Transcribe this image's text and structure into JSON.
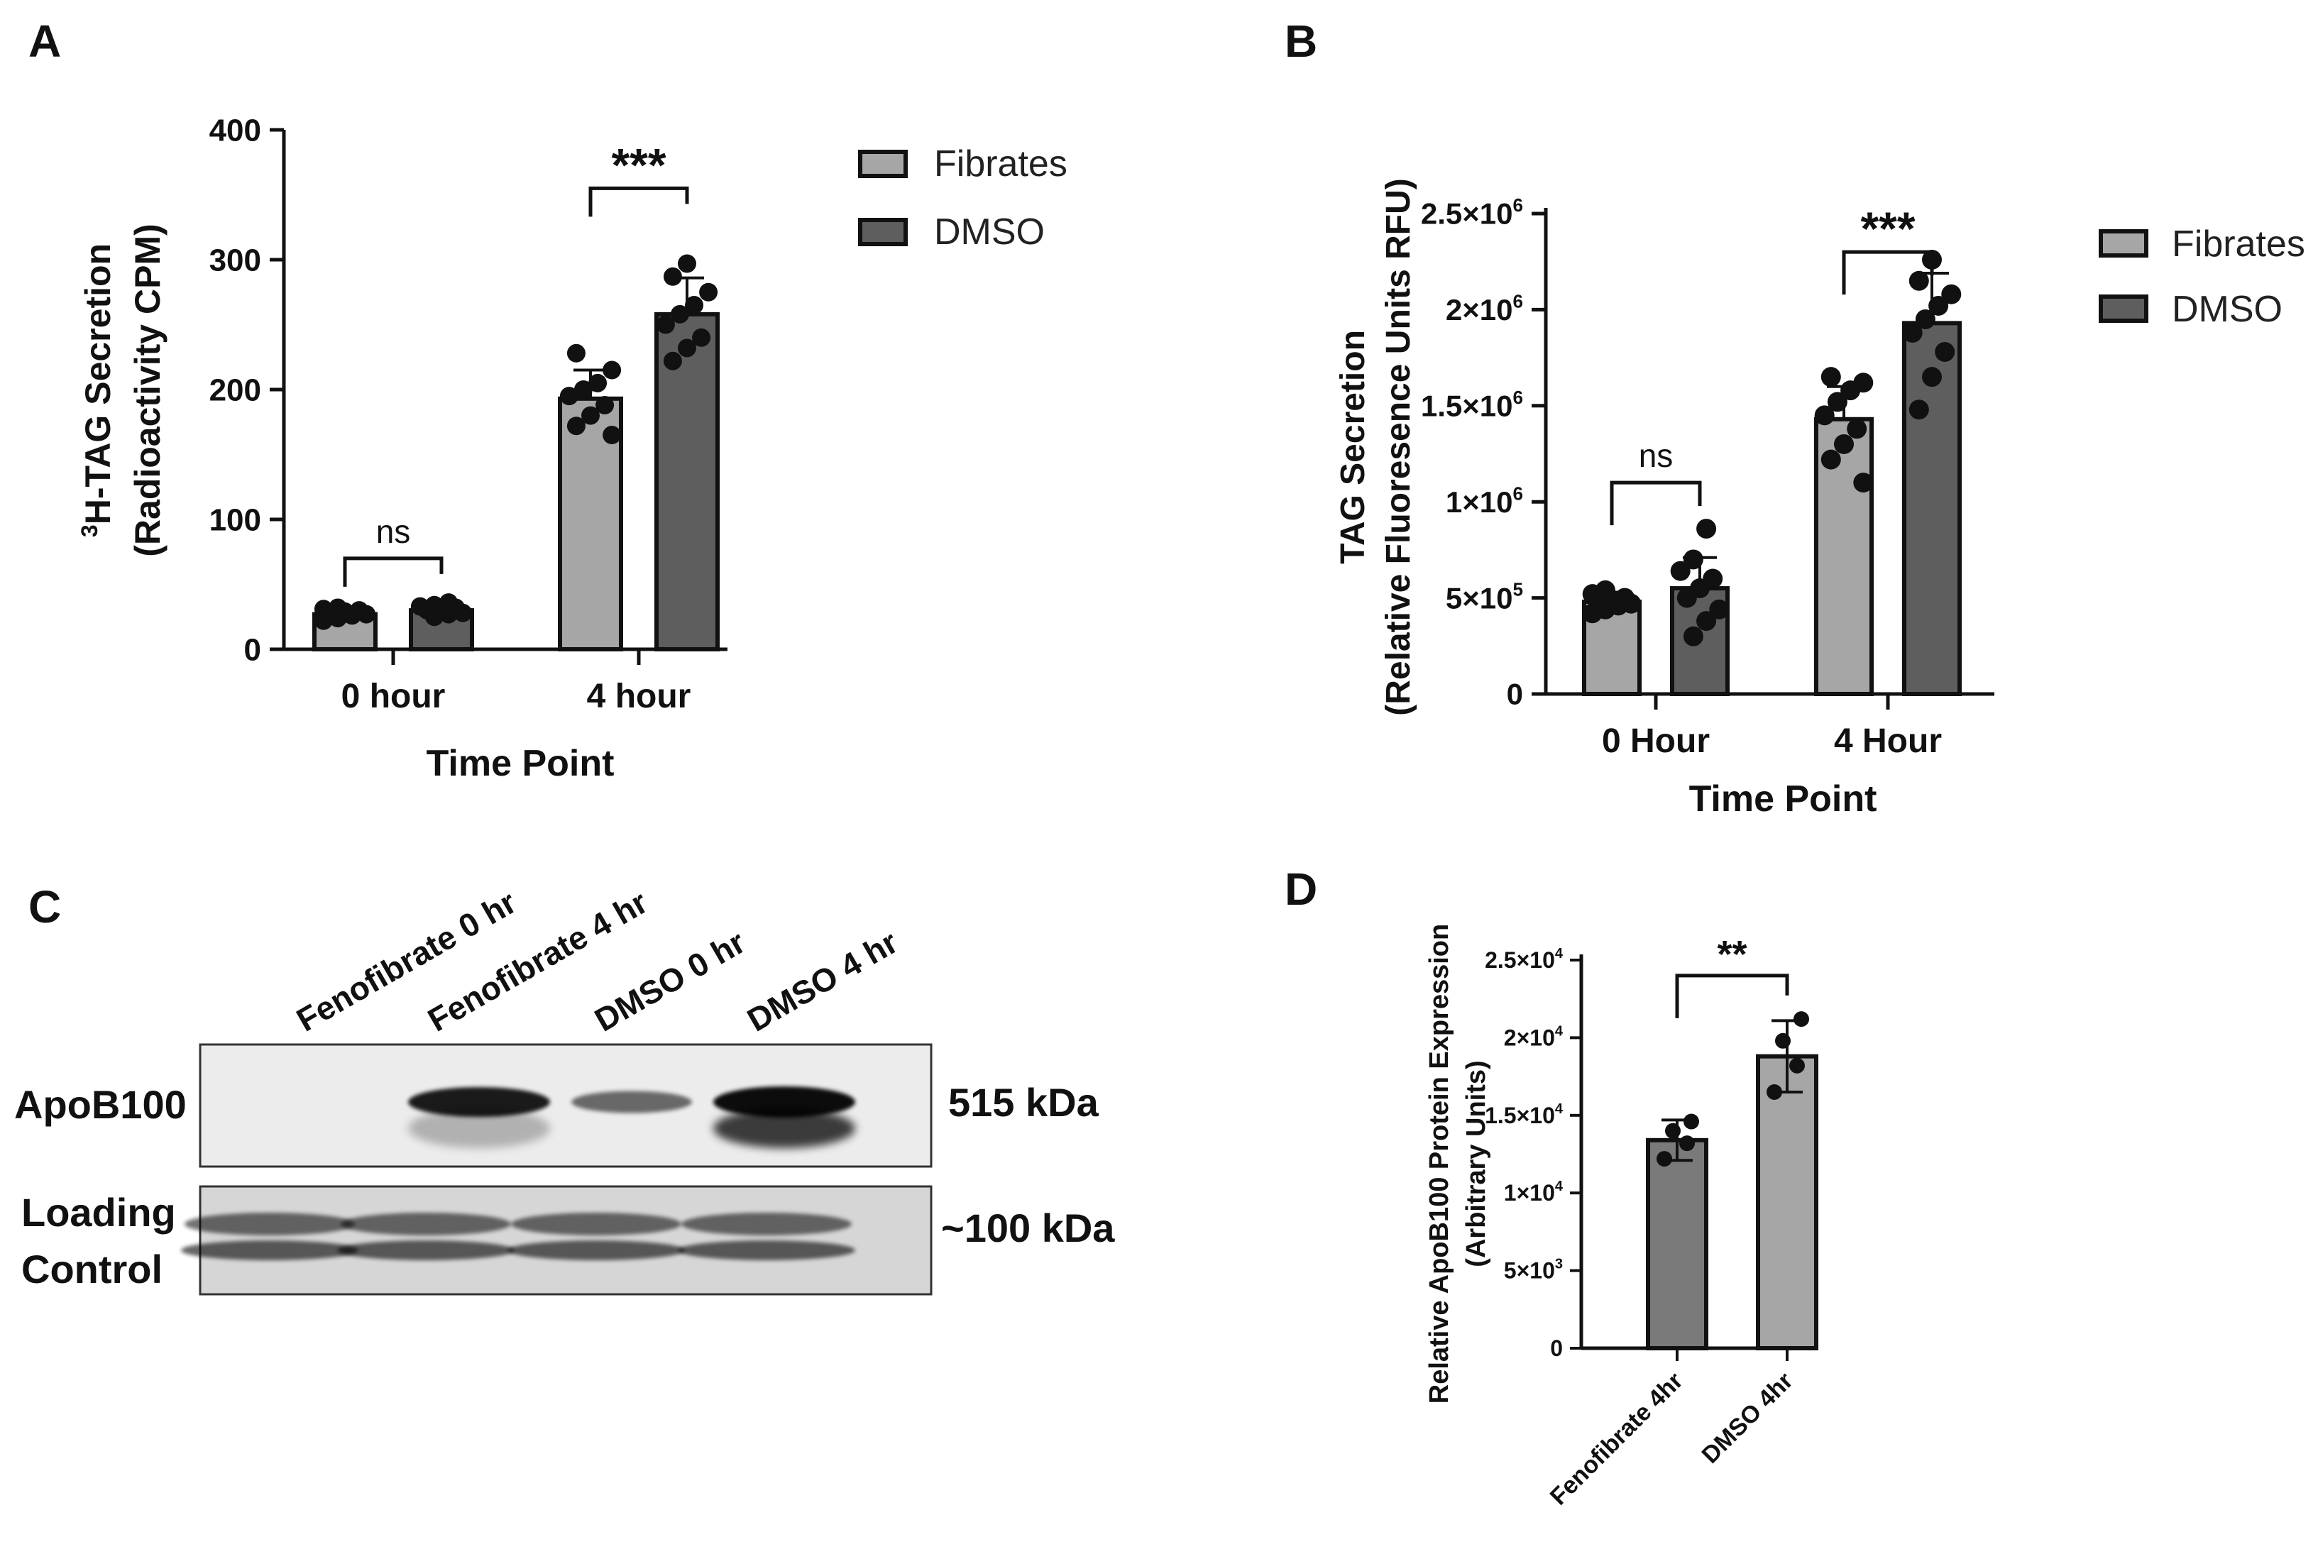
{
  "chart_data": [
    {
      "panel": "A",
      "type": "bar",
      "ylabel_line1_sup": "3",
      "ylabel_line1": "H-TAG Secretion",
      "ylabel_line2": "(Radioactivity CPM)",
      "xlabel": "Time Point",
      "categories": [
        "0 hour",
        "4 hour"
      ],
      "ylim": [
        0,
        400
      ],
      "yticks": [
        "0",
        "100",
        "200",
        "300",
        "400"
      ],
      "ytick_values": [
        0,
        100,
        200,
        300,
        400
      ],
      "series": [
        {
          "name": "Fibrates",
          "color": "#a6a6a6",
          "values": [
            27,
            193
          ],
          "errors": [
            3,
            22
          ],
          "points": [
            [
              22,
              24,
              26,
              27,
              28,
              29,
              30,
              31,
              32
            ],
            [
              165,
              172,
              180,
              188,
              195,
              200,
              205,
              215,
              228
            ]
          ]
        },
        {
          "name": "DMSO",
          "color": "#5e5e5e",
          "values": [
            30,
            258
          ],
          "errors": [
            4,
            28
          ],
          "points": [
            [
              25,
              27,
              28,
              30,
              31,
              32,
              33,
              34,
              36
            ],
            [
              222,
              232,
              240,
              250,
              258,
              265,
              275,
              287,
              297
            ]
          ]
        }
      ],
      "annotations": [
        {
          "category": "0 hour",
          "text": "ns",
          "y": 70
        },
        {
          "category": "4 hour",
          "text": "***",
          "y": 355
        }
      ],
      "legend": [
        "Fibrates",
        "DMSO"
      ],
      "legend_position": "right"
    },
    {
      "panel": "B",
      "type": "bar",
      "ylabel_line1": "TAG Secretion",
      "ylabel_line2": "(Relative Fluoresence Units RFU)",
      "xlabel": "Time Point",
      "categories": [
        "0 Hour",
        "4 Hour"
      ],
      "ylim": [
        0,
        2500000
      ],
      "yticks": [
        "0",
        "5×10",
        "1×10",
        "1.5×10",
        "2×10",
        "2.5×10"
      ],
      "ytick_exps": [
        "",
        "5",
        "6",
        "6",
        "6",
        "6"
      ],
      "ytick_values": [
        0,
        500000,
        1000000,
        1500000,
        2000000,
        2500000
      ],
      "series": [
        {
          "name": "Fibrates",
          "color": "#a6a6a6",
          "values": [
            480000,
            1430000
          ],
          "errors": [
            50000,
            170000
          ],
          "points": [
            [
              420000,
              440000,
              460000,
              470000,
              480000,
              490000,
              500000,
              520000,
              540000
            ],
            [
              1100000,
              1220000,
              1300000,
              1380000,
              1450000,
              1520000,
              1580000,
              1620000,
              1650000
            ]
          ]
        },
        {
          "name": "DMSO",
          "color": "#5e5e5e",
          "values": [
            550000,
            1930000
          ],
          "errors": [
            160000,
            260000
          ],
          "points": [
            [
              300000,
              380000,
              440000,
              500000,
              550000,
              600000,
              640000,
              700000,
              860000
            ],
            [
              1480000,
              1650000,
              1780000,
              1880000,
              1950000,
              2020000,
              2080000,
              2150000,
              2260000
            ]
          ]
        }
      ],
      "annotations": [
        {
          "category": "0 Hour",
          "text": "ns",
          "y": 1100000
        },
        {
          "category": "4 Hour",
          "text": "***",
          "y": 2300000
        }
      ],
      "legend": [
        "Fibrates",
        "DMSO"
      ],
      "legend_position": "right"
    },
    {
      "panel": "D",
      "type": "bar",
      "ylabel_line1": "Relative ApoB100 Protein Expression",
      "ylabel_line2": "(Arbitrary Units)",
      "categories": [
        "Fenofibrate 4hr",
        "DMSO 4hr"
      ],
      "ylim": [
        0,
        25000
      ],
      "yticks": [
        "0",
        "5×10",
        "1×10",
        "1.5×10",
        "2×10",
        "2.5×10"
      ],
      "ytick_exps": [
        "",
        "3",
        "4",
        "4",
        "4",
        "4"
      ],
      "ytick_values": [
        0,
        5000,
        10000,
        15000,
        20000,
        25000
      ],
      "series": [
        {
          "name": "",
          "colors": [
            "#7a7a7a",
            "#a6a6a6"
          ],
          "values": [
            13400,
            18800
          ],
          "errors": [
            1300,
            2300
          ],
          "points": [
            [
              12200,
              13200,
              14000,
              14600
            ],
            [
              16500,
              18200,
              19800,
              21200
            ]
          ]
        }
      ],
      "annotations": [
        {
          "text": "**",
          "y": 24000
        }
      ]
    }
  ],
  "panels": {
    "a": "A",
    "b": "B",
    "c": "C",
    "d": "D"
  },
  "blot": {
    "lanes": [
      "Fenofibrate 0 hr",
      "Fenofibrate 4 hr",
      "DMSO 0 hr",
      "DMSO 4 hr"
    ],
    "row1_label": "ApoB100",
    "row1_size": "515 kDa",
    "row2_label_line1": "Loading",
    "row2_label_line2": "Control",
    "row2_size": "~100 kDa",
    "apob_intensity": [
      0.0,
      0.9,
      0.35,
      1.0
    ]
  }
}
